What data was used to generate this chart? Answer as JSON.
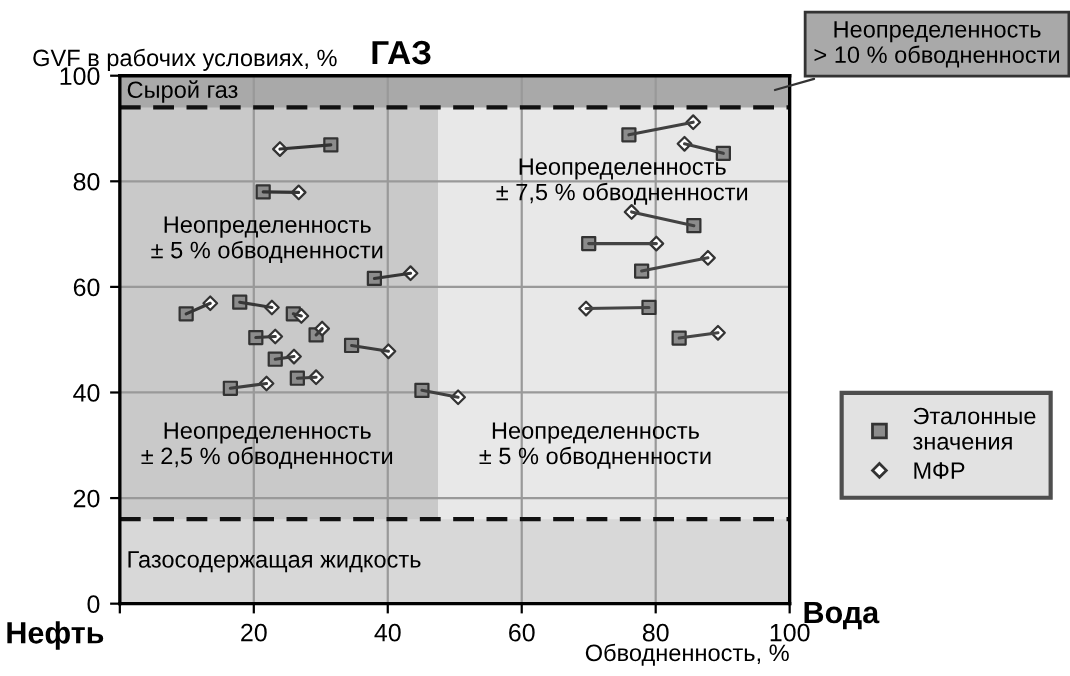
{
  "chart_data": {
    "type": "scatter",
    "title": "ГАЗ",
    "xlabel": "Обводненность, %",
    "ylabel": "GVF в рабочих условиях, %",
    "xlim": [
      0,
      100
    ],
    "ylim": [
      0,
      100
    ],
    "xticks": [
      {
        "value": 0,
        "label": null
      },
      20,
      40,
      60,
      80,
      100
    ],
    "yticks": [
      0,
      20,
      40,
      60,
      80,
      100
    ],
    "grid": true,
    "legend": "right",
    "bands": [
      {
        "axis": "x",
        "from": 0,
        "to": 47.5,
        "color": "#c9c9c9"
      },
      {
        "axis": "y",
        "from": 94,
        "to": 100,
        "label": "Сырой газ",
        "color": "#a9a9a9"
      },
      {
        "axis": "y",
        "from": 0,
        "to": 16,
        "label": "Газосодержащая жидкость",
        "color": "#d8d8d8"
      }
    ],
    "ref_lines": [
      {
        "axis": "y",
        "value": 94,
        "line_style": "dashed",
        "color": "#111111"
      },
      {
        "axis": "y",
        "value": 16,
        "line_style": "dashed",
        "color": "#111111"
      }
    ],
    "annotations": [
      "Неопределенность\n± 5 % обводненности",
      "Неопределенность\n± 7,5 % обводненности",
      "Неопределенность\n± 2,5 % обводненности",
      "Неопределенность\n± 5 % обводненности",
      "Неопределенность\n> 10 % обводненности",
      "Нефть",
      "Вода"
    ],
    "series": [
      {
        "name": "Эталонные значения",
        "marker": "square",
        "color": "#8c8c8c",
        "x": [
          31.5,
          21.4,
          38.0,
          9.9,
          17.9,
          25.9,
          20.3,
          29.3,
          23.2,
          34.6,
          26.5,
          16.5,
          45.1,
          76.0,
          90.1,
          85.7,
          70.0,
          77.9,
          79.0,
          83.5
        ],
        "values": [
          86.9,
          78.0,
          61.6,
          54.9,
          57.1,
          54.9,
          50.4,
          50.9,
          46.3,
          48.9,
          42.7,
          40.8,
          40.4,
          88.8,
          85.3,
          71.6,
          68.2,
          63.0,
          56.1,
          50.3
        ]
      },
      {
        "name": "МФР",
        "marker": "diamond",
        "color": "#ffffff",
        "x": [
          23.9,
          26.7,
          43.4,
          13.5,
          22.7,
          27.1,
          23.2,
          30.2,
          26.0,
          40.1,
          29.3,
          21.9,
          50.5,
          85.6,
          84.3,
          76.4,
          80.1,
          87.8,
          69.6,
          89.3
        ],
        "values": [
          86.1,
          77.9,
          62.6,
          56.9,
          56.1,
          54.5,
          50.6,
          52.1,
          46.8,
          47.8,
          42.9,
          41.7,
          39.1,
          91.2,
          87.1,
          74.2,
          68.2,
          65.5,
          55.9,
          51.3
        ]
      },
      {
        "type": "line",
        "color": "#333333",
        "x": [
          31.5,
          23.9
        ],
        "values": [
          86.9,
          86.1
        ]
      },
      {
        "type": "line",
        "color": "#343434",
        "x": [
          21.4,
          26.7
        ],
        "values": [
          78.0,
          77.9
        ]
      },
      {
        "type": "line",
        "color": "#353535",
        "x": [
          38.0,
          43.4
        ],
        "values": [
          61.6,
          62.6
        ]
      },
      {
        "type": "line",
        "color": "#363636",
        "x": [
          9.9,
          13.5
        ],
        "values": [
          54.9,
          56.9
        ]
      },
      {
        "type": "line",
        "color": "#373737",
        "x": [
          17.9,
          22.7
        ],
        "values": [
          57.1,
          56.1
        ]
      },
      {
        "type": "line",
        "color": "#383838",
        "x": [
          25.9,
          27.1
        ],
        "values": [
          54.9,
          54.5
        ]
      },
      {
        "type": "line",
        "color": "#393939",
        "x": [
          20.3,
          23.2
        ],
        "values": [
          50.4,
          50.6
        ]
      },
      {
        "type": "line",
        "color": "#3a3a3a",
        "x": [
          29.3,
          30.2
        ],
        "values": [
          50.9,
          52.1
        ]
      },
      {
        "type": "line",
        "color": "#3b3b3b",
        "x": [
          23.2,
          26.0
        ],
        "values": [
          46.3,
          46.8
        ]
      },
      {
        "type": "line",
        "color": "#3c3c3c",
        "x": [
          34.6,
          40.1
        ],
        "values": [
          48.9,
          47.8
        ]
      },
      {
        "type": "line",
        "color": "#3d3d3d",
        "x": [
          26.5,
          29.3
        ],
        "values": [
          42.7,
          42.9
        ]
      },
      {
        "type": "line",
        "color": "#3e3e3e",
        "x": [
          16.5,
          21.9
        ],
        "values": [
          40.8,
          41.7
        ]
      },
      {
        "type": "line",
        "color": "#3f3f3f",
        "x": [
          45.1,
          50.5
        ],
        "values": [
          40.4,
          39.1
        ]
      },
      {
        "type": "line",
        "color": "#404040",
        "x": [
          76.0,
          85.6
        ],
        "values": [
          88.8,
          91.2
        ]
      },
      {
        "type": "line",
        "color": "#414141",
        "x": [
          90.1,
          84.3
        ],
        "values": [
          85.3,
          87.1
        ]
      },
      {
        "type": "line",
        "color": "#424242",
        "x": [
          85.7,
          76.4
        ],
        "values": [
          71.6,
          74.2
        ]
      },
      {
        "type": "line",
        "color": "#434343",
        "x": [
          70.0,
          80.1
        ],
        "values": [
          68.2,
          68.2
        ]
      },
      {
        "type": "line",
        "color": "#444444",
        "x": [
          77.9,
          87.8
        ],
        "values": [
          63.0,
          65.5
        ]
      },
      {
        "type": "line",
        "color": "#454545",
        "x": [
          79.0,
          69.6
        ],
        "values": [
          56.1,
          55.9
        ]
      },
      {
        "type": "line",
        "color": "#464646",
        "x": [
          83.5,
          89.3
        ],
        "values": [
          50.3,
          51.3
        ]
      }
    ]
  }
}
